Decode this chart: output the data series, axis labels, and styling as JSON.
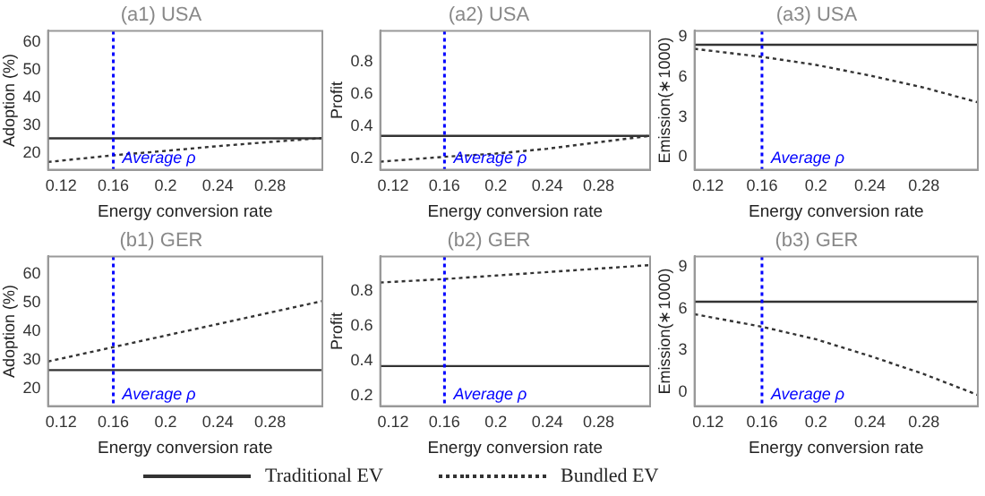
{
  "chart_data": [
    {
      "type": "line",
      "title": "(a1) USA",
      "xlabel": "Energy conversion rate",
      "ylabel": "Adoption (%)",
      "x": [
        0.11,
        0.16,
        0.2,
        0.24,
        0.28,
        0.32
      ],
      "xlim": [
        0.11,
        0.32
      ],
      "xticks": [
        0.12,
        0.16,
        0.2,
        0.24,
        0.28
      ],
      "ylim": [
        14,
        64
      ],
      "yticks": [
        20,
        30,
        40,
        50,
        60
      ],
      "grid": false,
      "legend": false,
      "marker": "none",
      "series": [
        {
          "color": "#333333",
          "line_style": "solid",
          "values": [
            25.3,
            25.3,
            25.3,
            25.3,
            25.3,
            25.3
          ]
        },
        {
          "color": "#333333",
          "line_style": "dotted",
          "values": [
            16.8,
            19.2,
            20.8,
            22.5,
            24,
            25.4
          ]
        }
      ],
      "ref_lines": [
        {
          "axis": "x",
          "value": 0.16,
          "label": "Average ρ",
          "color": "#0000ff",
          "line_style": "dotted"
        }
      ]
    },
    {
      "type": "line",
      "title": "(a2) USA",
      "xlabel": "Energy conversion rate",
      "ylabel": "Profit",
      "x": [
        0.11,
        0.16,
        0.2,
        0.24,
        0.28,
        0.32
      ],
      "xlim": [
        0.11,
        0.32
      ],
      "xticks": [
        0.12,
        0.16,
        0.2,
        0.24,
        0.28
      ],
      "ylim": [
        0.13,
        0.99
      ],
      "yticks": [
        0.2,
        0.4,
        0.6,
        0.8
      ],
      "grid": false,
      "legend": false,
      "marker": "none",
      "series": [
        {
          "color": "#333333",
          "line_style": "solid",
          "values": [
            0.34,
            0.34,
            0.34,
            0.34,
            0.34,
            0.34
          ]
        },
        {
          "color": "#333333",
          "line_style": "dotted",
          "values": [
            0.18,
            0.21,
            0.23,
            0.26,
            0.3,
            0.34
          ]
        }
      ],
      "ref_lines": [
        {
          "axis": "x",
          "value": 0.16,
          "label": "Average ρ",
          "color": "#0000ff",
          "line_style": "dotted"
        }
      ]
    },
    {
      "type": "line",
      "title": "(a3) USA",
      "xlabel": "Energy conversion rate",
      "ylabel": "Emission(∗1000)",
      "x": [
        0.11,
        0.16,
        0.2,
        0.24,
        0.28,
        0.32
      ],
      "xlim": [
        0.11,
        0.32
      ],
      "xticks": [
        0.12,
        0.16,
        0.2,
        0.24,
        0.28
      ],
      "ylim": [
        -0.95,
        9.45
      ],
      "yticks": [
        0,
        3,
        6,
        9
      ],
      "grid": false,
      "legend": false,
      "marker": "none",
      "series": [
        {
          "color": "#333333",
          "line_style": "solid",
          "values": [
            8.4,
            8.4,
            8.4,
            8.4,
            8.4,
            8.4
          ]
        },
        {
          "color": "#333333",
          "line_style": "dotted",
          "values": [
            8.1,
            7.5,
            6.9,
            6.1,
            5.2,
            4.1
          ]
        }
      ],
      "ref_lines": [
        {
          "axis": "x",
          "value": 0.16,
          "label": "Average ρ",
          "color": "#0000ff",
          "line_style": "dotted"
        }
      ]
    },
    {
      "type": "line",
      "title": "(b1) GER",
      "xlabel": "Energy conversion rate",
      "ylabel": "Adoption (%)",
      "x": [
        0.11,
        0.16,
        0.2,
        0.24,
        0.28,
        0.32
      ],
      "xlim": [
        0.11,
        0.32
      ],
      "xticks": [
        0.12,
        0.16,
        0.2,
        0.24,
        0.28
      ],
      "ylim": [
        14,
        66
      ],
      "yticks": [
        20,
        30,
        40,
        50,
        60
      ],
      "grid": false,
      "legend": "bottom",
      "marker": "none",
      "series": [
        {
          "name": "Traditional EV",
          "color": "#333333",
          "line_style": "solid",
          "values": [
            26.5,
            26.5,
            26.5,
            26.5,
            26.5,
            26.5
          ]
        },
        {
          "name": "Bundled EV",
          "color": "#333333",
          "line_style": "dotted",
          "values": [
            29.5,
            34.5,
            38.5,
            42.5,
            46.5,
            50.5
          ]
        }
      ],
      "ref_lines": [
        {
          "axis": "x",
          "value": 0.16,
          "label": "Average ρ",
          "color": "#0000ff",
          "line_style": "dotted"
        }
      ]
    },
    {
      "type": "line",
      "title": "(b2) GER",
      "xlabel": "Energy conversion rate",
      "ylabel": "Profit",
      "x": [
        0.11,
        0.16,
        0.2,
        0.24,
        0.28,
        0.32
      ],
      "xlim": [
        0.11,
        0.32
      ],
      "xticks": [
        0.12,
        0.16,
        0.2,
        0.24,
        0.28
      ],
      "ylim": [
        0.14,
        1.0
      ],
      "yticks": [
        0.2,
        0.4,
        0.6,
        0.8
      ],
      "grid": false,
      "legend": false,
      "marker": "none",
      "series": [
        {
          "color": "#333333",
          "line_style": "solid",
          "values": [
            0.37,
            0.37,
            0.37,
            0.37,
            0.37,
            0.37
          ]
        },
        {
          "color": "#333333",
          "line_style": "dotted",
          "values": [
            0.85,
            0.87,
            0.89,
            0.91,
            0.93,
            0.95
          ]
        }
      ],
      "ref_lines": [
        {
          "axis": "x",
          "value": 0.16,
          "label": "Average ρ",
          "color": "#0000ff",
          "line_style": "dotted"
        }
      ]
    },
    {
      "type": "line",
      "title": "(b3) GER",
      "xlabel": "Energy conversion rate",
      "ylabel": "Emission(∗1000)",
      "x": [
        0.11,
        0.16,
        0.2,
        0.24,
        0.28,
        0.32
      ],
      "xlim": [
        0.11,
        0.32
      ],
      "xticks": [
        0.12,
        0.16,
        0.2,
        0.24,
        0.28
      ],
      "ylim": [
        -1,
        9.75
      ],
      "yticks": [
        0,
        3,
        6,
        9
      ],
      "grid": false,
      "legend": false,
      "marker": "none",
      "series": [
        {
          "color": "#333333",
          "line_style": "solid",
          "values": [
            6.5,
            6.5,
            6.5,
            6.5,
            6.5,
            6.5
          ]
        },
        {
          "color": "#333333",
          "line_style": "dotted",
          "values": [
            5.6,
            4.7,
            3.8,
            2.6,
            1.3,
            -0.2
          ]
        }
      ],
      "ref_lines": [
        {
          "axis": "x",
          "value": 0.16,
          "label": "Average ρ",
          "color": "#0000ff",
          "line_style": "dotted"
        }
      ]
    }
  ]
}
